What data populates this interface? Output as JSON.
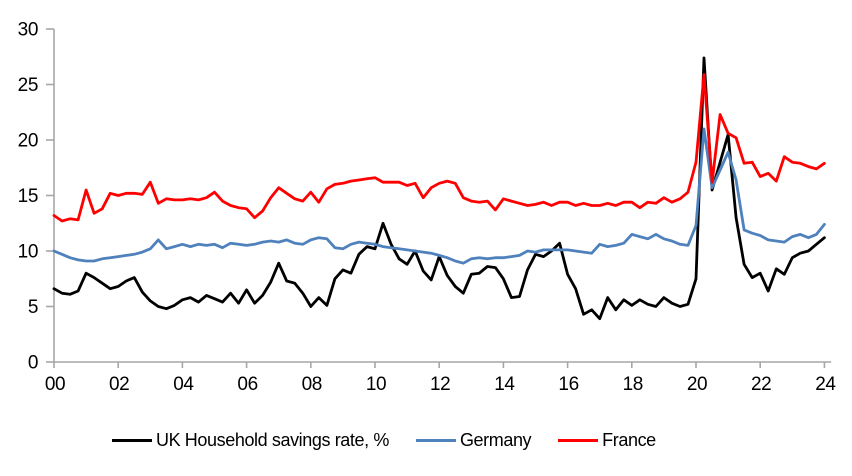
{
  "chart_data": {
    "type": "line",
    "title": "",
    "xlabel": "",
    "ylabel": "",
    "grid": false,
    "legend_position": "bottom",
    "axis_color": "#a6a6a6",
    "text_color": "#000000",
    "background_color": "#ffffff",
    "ylim": [
      0,
      30
    ],
    "y_ticks": [
      0,
      5,
      10,
      15,
      20,
      25,
      30
    ],
    "x_tick_labels": [
      "00",
      "02",
      "04",
      "06",
      "08",
      "10",
      "12",
      "14",
      "16",
      "18",
      "20",
      "22",
      "24"
    ],
    "x_start_year": 2000,
    "x_step_years": 0.25,
    "x_unit": "year (quarterly data)",
    "series": [
      {
        "name": "UK Household savings rate, %",
        "color": "#000000",
        "values": [
          6.6,
          6.2,
          6.1,
          6.4,
          8.0,
          7.6,
          7.1,
          6.6,
          6.8,
          7.3,
          7.6,
          6.3,
          5.5,
          5.0,
          4.8,
          5.1,
          5.6,
          5.8,
          5.4,
          6.0,
          5.7,
          5.4,
          6.2,
          5.3,
          6.5,
          5.3,
          6.0,
          7.2,
          8.9,
          7.3,
          7.1,
          6.2,
          5.0,
          5.8,
          5.1,
          7.5,
          8.3,
          8.0,
          9.7,
          10.4,
          10.2,
          12.5,
          10.6,
          9.3,
          8.8,
          10.0,
          8.2,
          7.4,
          9.5,
          7.8,
          6.8,
          6.2,
          7.9,
          8.0,
          8.6,
          8.5,
          7.5,
          5.8,
          5.9,
          8.3,
          9.7,
          9.5,
          10.0,
          10.7,
          7.9,
          6.6,
          4.3,
          4.7,
          3.9,
          5.8,
          4.7,
          5.6,
          5.1,
          5.6,
          5.2,
          5.0,
          5.8,
          5.3,
          5.0,
          5.2,
          7.5,
          27.4,
          15.5,
          18.0,
          20.5,
          13.0,
          8.8,
          7.6,
          8.0,
          6.4,
          8.4,
          7.9,
          9.4,
          9.8,
          10.0,
          10.6,
          11.2
        ]
      },
      {
        "name": "Germany",
        "color": "#4f81bd",
        "values": [
          10.0,
          9.7,
          9.4,
          9.2,
          9.1,
          9.1,
          9.3,
          9.4,
          9.5,
          9.6,
          9.7,
          9.9,
          10.2,
          11.0,
          10.2,
          10.4,
          10.6,
          10.4,
          10.6,
          10.5,
          10.6,
          10.3,
          10.7,
          10.6,
          10.5,
          10.6,
          10.8,
          10.9,
          10.8,
          11.0,
          10.7,
          10.6,
          11.0,
          11.2,
          11.1,
          10.3,
          10.2,
          10.6,
          10.8,
          10.7,
          10.6,
          10.4,
          10.3,
          10.2,
          10.1,
          10.0,
          9.9,
          9.8,
          9.6,
          9.4,
          9.1,
          8.9,
          9.3,
          9.4,
          9.3,
          9.4,
          9.4,
          9.5,
          9.6,
          10.0,
          9.9,
          10.1,
          10.1,
          10.1,
          10.1,
          10.0,
          9.9,
          9.8,
          10.6,
          10.4,
          10.5,
          10.7,
          11.5,
          11.3,
          11.1,
          11.5,
          11.1,
          10.9,
          10.6,
          10.5,
          12.3,
          21.0,
          15.7,
          17.3,
          18.9,
          16.4,
          11.9,
          11.6,
          11.4,
          11.0,
          10.9,
          10.8,
          11.3,
          11.5,
          11.2,
          11.5,
          12.4
        ]
      },
      {
        "name": "France",
        "color": "#ff0000",
        "values": [
          13.2,
          12.7,
          12.9,
          12.8,
          15.5,
          13.4,
          13.8,
          15.2,
          15.0,
          15.2,
          15.2,
          15.1,
          16.2,
          14.3,
          14.7,
          14.6,
          14.6,
          14.7,
          14.6,
          14.8,
          15.3,
          14.5,
          14.1,
          13.9,
          13.8,
          13.0,
          13.6,
          14.8,
          15.7,
          15.2,
          14.7,
          14.5,
          15.3,
          14.4,
          15.6,
          16.0,
          16.1,
          16.3,
          16.4,
          16.5,
          16.6,
          16.2,
          16.2,
          16.2,
          15.9,
          16.1,
          14.8,
          15.7,
          16.1,
          16.3,
          16.1,
          14.8,
          14.5,
          14.4,
          14.5,
          13.7,
          14.7,
          14.5,
          14.3,
          14.1,
          14.2,
          14.4,
          14.1,
          14.4,
          14.4,
          14.1,
          14.3,
          14.1,
          14.1,
          14.3,
          14.1,
          14.4,
          14.4,
          13.9,
          14.4,
          14.3,
          14.8,
          14.4,
          14.7,
          15.3,
          18.0,
          25.9,
          16.2,
          22.3,
          20.6,
          20.2,
          17.9,
          18.0,
          16.7,
          17.0,
          16.3,
          18.5,
          18.0,
          17.9,
          17.6,
          17.4,
          17.9
        ]
      }
    ]
  },
  "legend": {
    "items": [
      {
        "label": "UK Household savings rate, %"
      },
      {
        "label": "Germany"
      },
      {
        "label": "France"
      }
    ]
  }
}
